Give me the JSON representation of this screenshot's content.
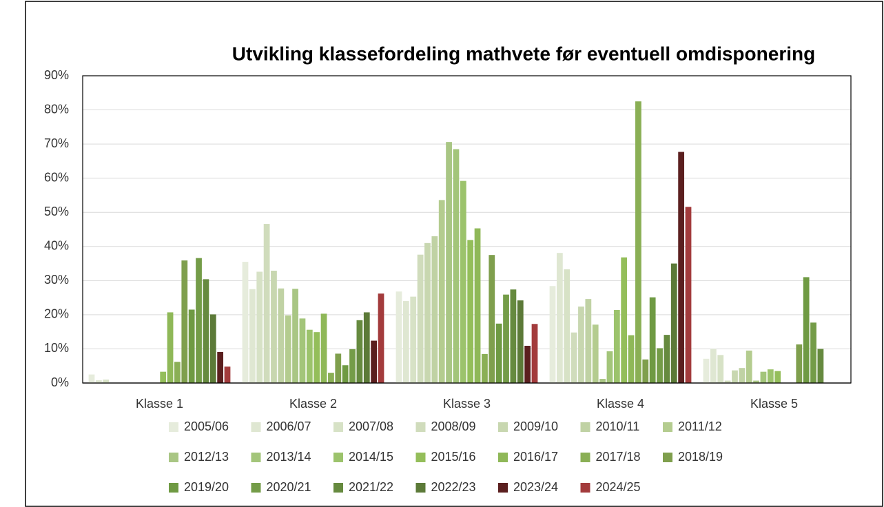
{
  "chart_data": {
    "type": "bar",
    "title": "Utvikling klassefordeling mathvete før eventuell omdisponering",
    "categories": [
      "Klasse 1",
      "Klasse 2",
      "Klasse 3",
      "Klasse 4",
      "Klasse 5"
    ],
    "series": [
      {
        "name": "2005/06",
        "color": "#e6ecdc",
        "values": [
          2.5,
          35.5,
          26.8,
          28.4,
          7.1
        ]
      },
      {
        "name": "2006/07",
        "color": "#dfe7d2",
        "values": [
          0.8,
          27.5,
          24.0,
          38.1,
          10.0
        ]
      },
      {
        "name": "2007/08",
        "color": "#d7e2c6",
        "values": [
          1.0,
          32.6,
          25.3,
          33.3,
          8.2
        ]
      },
      {
        "name": "2008/09",
        "color": "#d0dcbc",
        "values": [
          0,
          46.6,
          37.6,
          14.8,
          0.7
        ]
      },
      {
        "name": "2009/10",
        "color": "#c8d7b0",
        "values": [
          0,
          32.9,
          41.0,
          22.4,
          3.7
        ]
      },
      {
        "name": "2010/11",
        "color": "#c0d2a4",
        "values": [
          0,
          27.7,
          43.0,
          24.6,
          4.4
        ]
      },
      {
        "name": "2011/12",
        "color": "#b4cc8f",
        "values": [
          0,
          19.8,
          53.6,
          17.1,
          9.5
        ]
      },
      {
        "name": "2012/13",
        "color": "#a9c684",
        "values": [
          0,
          27.6,
          70.6,
          1.2,
          0.7
        ]
      },
      {
        "name": "2013/14",
        "color": "#a3c57a",
        "values": [
          0,
          18.9,
          68.5,
          9.3,
          3.3
        ]
      },
      {
        "name": "2014/15",
        "color": "#9cc36c",
        "values": [
          0,
          15.6,
          59.2,
          21.4,
          4.0
        ]
      },
      {
        "name": "2015/16",
        "color": "#94be5a",
        "values": [
          3.3,
          14.9,
          41.9,
          36.8,
          3.5
        ]
      },
      {
        "name": "2016/17",
        "color": "#8fb858",
        "values": [
          20.7,
          20.3,
          45.3,
          14.0,
          0
        ]
      },
      {
        "name": "2017/18",
        "color": "#8aaf55",
        "values": [
          6.2,
          3.0,
          8.5,
          82.5,
          0
        ]
      },
      {
        "name": "2018/19",
        "color": "#7f9f4d",
        "values": [
          35.9,
          8.6,
          37.5,
          6.9,
          11.3
        ]
      },
      {
        "name": "2019/20",
        "color": "#6f9a43",
        "values": [
          21.5,
          5.2,
          17.4,
          25.1,
          31.0
        ]
      },
      {
        "name": "2020/21",
        "color": "#749c48",
        "values": [
          36.6,
          9.9,
          25.9,
          10.2,
          17.7
        ]
      },
      {
        "name": "2021/22",
        "color": "#668a3f",
        "values": [
          30.4,
          18.4,
          27.4,
          14.1,
          10.0
        ]
      },
      {
        "name": "2022/23",
        "color": "#5c7a38",
        "values": [
          20.1,
          20.7,
          24.2,
          35.0,
          0
        ]
      },
      {
        "name": "2023/24",
        "color": "#5b1f1f",
        "values": [
          9.1,
          12.4,
          10.9,
          67.7,
          0
        ]
      },
      {
        "name": "2024/25",
        "color": "#a33b3c",
        "values": [
          4.8,
          26.2,
          17.3,
          51.6,
          0
        ]
      }
    ],
    "ylim": [
      0,
      90
    ],
    "yticks": [
      {
        "value": 0,
        "label": "0%"
      },
      {
        "value": 10,
        "label": "10%"
      },
      {
        "value": 20,
        "label": "20%"
      },
      {
        "value": 30,
        "label": "30%"
      },
      {
        "value": 40,
        "label": "40%"
      },
      {
        "value": 50,
        "label": "50%"
      },
      {
        "value": 60,
        "label": "60%"
      },
      {
        "value": 70,
        "label": "70%"
      },
      {
        "value": 80,
        "label": "80%"
      },
      {
        "value": 90,
        "label": "90%"
      }
    ],
    "grid": true
  }
}
